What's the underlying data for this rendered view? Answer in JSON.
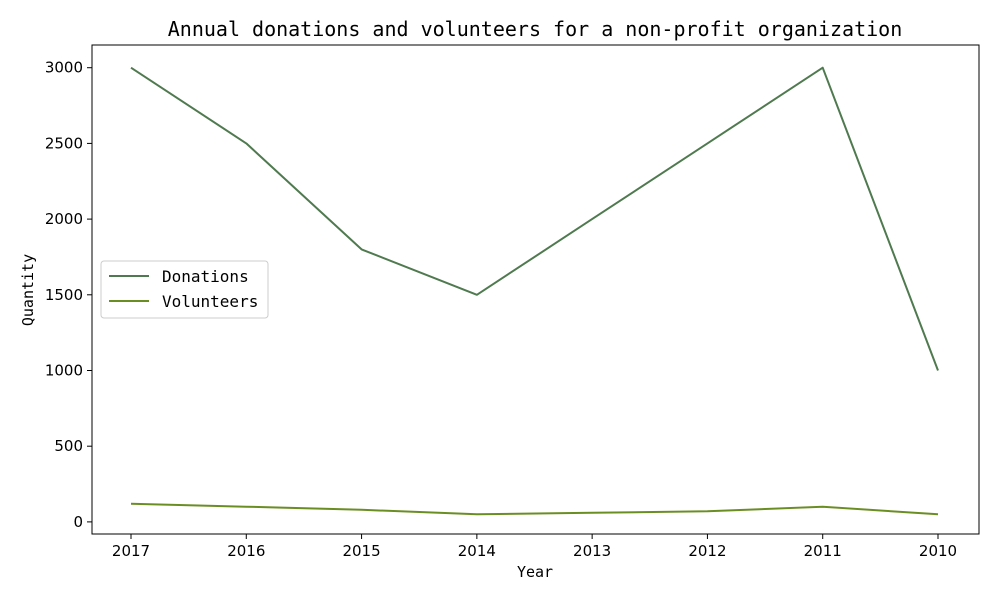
{
  "chart_data": {
    "type": "line",
    "title": "Annual donations and volunteers for a non-profit organization",
    "xlabel": "Year",
    "ylabel": "Quantity",
    "categories": [
      "2017",
      "2016",
      "2015",
      "2014",
      "2013",
      "2012",
      "2011",
      "2010"
    ],
    "series": [
      {
        "name": "Donations",
        "color": "#4f7a4f",
        "values": [
          3000,
          2500,
          1800,
          1500,
          2000,
          2500,
          3000,
          1000
        ]
      },
      {
        "name": "Volunteers",
        "color": "#6b8e23",
        "values": [
          120,
          100,
          80,
          50,
          60,
          70,
          100,
          50
        ]
      }
    ],
    "ylim": [
      -80,
      3150
    ],
    "yticks": [
      0,
      500,
      1000,
      1500,
      2000,
      2500,
      3000
    ],
    "grid": false,
    "legend_position": "center-left"
  }
}
